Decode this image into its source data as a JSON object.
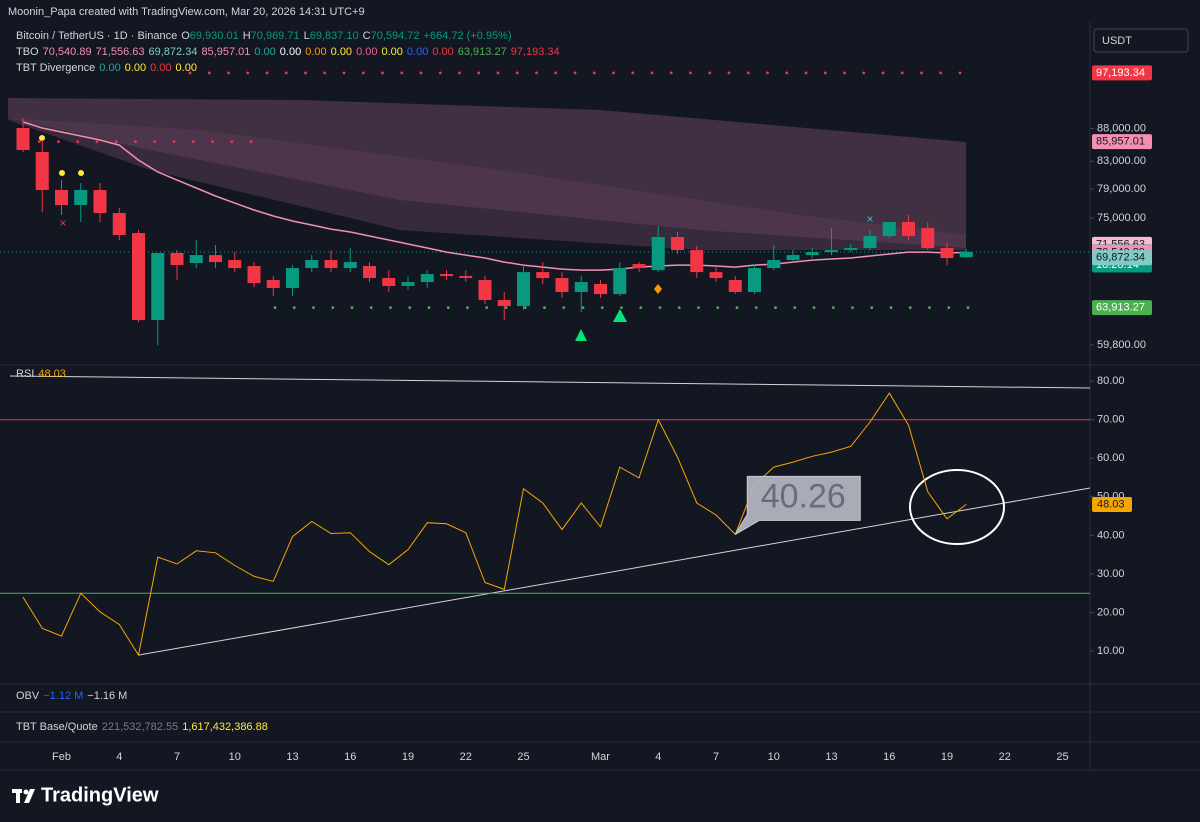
{
  "header": {
    "attribution": "Moonin_Papa created with TradingView.com, Mar 20, 2026 14:31 UTC+9",
    "symbol": "Bitcoin / TetherUS · 1D · Binance",
    "ohlc": [
      {
        "prefix": "O",
        "text": "69,930.01"
      },
      {
        "prefix": "H",
        "text": "70,969.71"
      },
      {
        "prefix": "L",
        "text": "69,837.10"
      },
      {
        "prefix": "C",
        "text": "70,594.72"
      }
    ],
    "change": "+664.72 (+0.95%)",
    "indicators": [
      {
        "name": "TBO",
        "values": [
          {
            "text": "70,540.89",
            "color": "#f48fb1"
          },
          {
            "text": "71,556.63",
            "color": "#f48fb1"
          },
          {
            "text": "69,872.34",
            "color": "#80cbc4"
          },
          {
            "text": "85,957.01",
            "color": "#f48fb1"
          },
          {
            "text": "0.00",
            "color": "#26a69a"
          },
          {
            "text": "0.00",
            "color": "#ffffff"
          },
          {
            "text": "0.00",
            "color": "#ff9800"
          },
          {
            "text": "0.00",
            "color": "#ffeb3b"
          },
          {
            "text": "0.00",
            "color": "#f06292"
          },
          {
            "text": "0.00",
            "color": "#ffeb3b"
          },
          {
            "text": "0.00",
            "color": "#2962ff"
          },
          {
            "text": "0.00",
            "color": "#f23645"
          },
          {
            "text": "63,913.27",
            "color": "#4caf50"
          },
          {
            "text": "97,193.34",
            "color": "#f23645"
          }
        ]
      },
      {
        "name": "TBT Divergence",
        "values": [
          {
            "text": "0.00",
            "color": "#26a69a"
          },
          {
            "text": "0.00",
            "color": "#ffeb3b"
          },
          {
            "text": "0.00",
            "color": "#f23645"
          },
          {
            "text": "0.00",
            "color": "#ffeb3b"
          }
        ]
      }
    ],
    "currency": "USDT",
    "obv": {
      "name": "OBV",
      "values": [
        {
          "text": "−1.12 M",
          "color": "#2962ff"
        },
        {
          "text": "−1.16 M",
          "color": "#d1d4dc"
        }
      ]
    },
    "tbt": {
      "name": "TBT Base/Quote",
      "values": [
        {
          "text": "221,532,782.55",
          "color": "#787b86"
        },
        {
          "text": "1,617,432,386.88",
          "color": "#ffeb3b"
        }
      ]
    },
    "footer": "TradingView"
  },
  "chart_data": [
    {
      "type": "candlestick",
      "log": true,
      "up_color": "#089981",
      "down_color": "#f23645",
      "categories": [
        null,
        null,
        "Feb",
        null,
        null,
        "4",
        null,
        null,
        "7",
        null,
        null,
        "10",
        null,
        null,
        "13",
        null,
        null,
        "16",
        null,
        null,
        "19",
        null,
        null,
        "22",
        null,
        null,
        "25",
        null,
        null,
        null,
        "Mar",
        null,
        null,
        "4",
        null,
        null,
        "7",
        null,
        null,
        "10",
        null,
        null,
        "13",
        null,
        null,
        "16",
        null,
        null,
        "19",
        null,
        null,
        "22",
        null,
        null,
        "25",
        null
      ],
      "open": [
        88080,
        84380,
        78850,
        76760,
        78850,
        75670,
        73020,
        62510,
        70460,
        69210,
        70200,
        69580,
        68840,
        67140,
        66190,
        68590,
        69580,
        68590,
        68840,
        67380,
        66430,
        66900,
        67860,
        67620,
        67140,
        64790,
        64090,
        68100,
        67380,
        65720,
        66660,
        65480,
        69080,
        68340,
        72500,
        70830,
        68100,
        67140,
        65720,
        68590,
        69580,
        70200,
        70580,
        70830,
        71090,
        72630,
        74470,
        73670,
        71090,
        69930.01,
        null,
        null,
        null,
        null,
        null,
        null
      ],
      "high": [
        89660,
        86210,
        80260,
        79840,
        79840,
        76350,
        73410,
        70460,
        70830,
        72110,
        71470,
        70580,
        69330,
        67620,
        68960,
        70200,
        70830,
        71090,
        69330,
        68340,
        67620,
        68340,
        68340,
        68340,
        67620,
        65720,
        68960,
        69330,
        68100,
        67620,
        67140,
        69330,
        69330,
        73940,
        73150,
        71340,
        68840,
        67620,
        69080,
        71470,
        70830,
        71090,
        73670,
        71600,
        73410,
        74470,
        75400,
        74470,
        71850,
        70969.71,
        null,
        null,
        null,
        null,
        null,
        null
      ],
      "low": [
        84380,
        75810,
        75400,
        74470,
        74470,
        72110,
        62290,
        59780,
        67140,
        68590,
        68590,
        68100,
        66310,
        65250,
        65250,
        68100,
        68100,
        68100,
        66900,
        65720,
        65950,
        66190,
        67140,
        66900,
        64320,
        62510,
        63640,
        66660,
        65020,
        63410,
        65020,
        65250,
        68100,
        68100,
        70330,
        67380,
        66900,
        65480,
        65480,
        68340,
        69330,
        69830,
        70200,
        70580,
        70830,
        72370,
        72110,
        70830,
        68960,
        69837.1,
        null,
        null,
        null,
        null,
        null,
        null
      ],
      "close": [
        84690,
        78850,
        76760,
        78850,
        75670,
        72760,
        62510,
        70460,
        68960,
        70200,
        69330,
        68590,
        66780,
        66190,
        68590,
        69580,
        68590,
        69330,
        67380,
        66430,
        66900,
        67860,
        67620,
        67380,
        64790,
        64090,
        68100,
        67380,
        65720,
        66900,
        65480,
        68590,
        68590,
        72500,
        70830,
        68100,
        67380,
        65720,
        68590,
        69580,
        70200,
        70580,
        70830,
        71090,
        72630,
        74470,
        72630,
        71090,
        69830,
        70594.72,
        null,
        null,
        null,
        null,
        null,
        null
      ],
      "ma": {
        "color": "#f48fb1",
        "values": [
          89030,
          88080,
          87450,
          86830,
          86210,
          85440,
          83180,
          81420,
          80260,
          79130,
          78010,
          77030,
          76080,
          75270,
          74600,
          74070,
          73540,
          73150,
          72630,
          72110,
          71600,
          71090,
          70580,
          70200,
          69830,
          69330,
          68960,
          68710,
          68470,
          68340,
          68340,
          68470,
          68710,
          68840,
          68960,
          68960,
          68840,
          68710,
          68960,
          69080,
          69330,
          69580,
          69710,
          69830,
          70080,
          70330,
          70580,
          70580,
          70460,
          70540.89,
          null,
          null,
          null,
          null,
          null,
          null
        ]
      },
      "ylim": [
        58000,
        105300
      ],
      "yticks": [
        {
          "value": 88000,
          "label": "88,000.00"
        },
        {
          "value": 83000,
          "label": "83,000.00"
        },
        {
          "value": 79000,
          "label": "79,000.00"
        },
        {
          "value": 75000,
          "label": "75,000.00"
        },
        {
          "value": 59800,
          "label": "59,800.00"
        }
      ],
      "price_labels": [
        {
          "value": 97193.34,
          "label": "97,193.34",
          "color": "#f23645",
          "text_color": "#ffffff"
        },
        {
          "value": 85957.01,
          "label": "85,957.01",
          "color": "#f48fb1",
          "text_color": "#131722"
        },
        {
          "value": 71556.63,
          "label": "71,556.63",
          "color": "#f8bbd0",
          "text_color": "#131722"
        },
        {
          "value": 70594.72,
          "label": "70,594.72",
          "sublabel": "18:28:14",
          "color": "#089981",
          "text_color": "#ffffff"
        },
        {
          "value": 70540.89,
          "label": "70,540.89",
          "color": "#f48fb1",
          "text_color": "#131722"
        },
        {
          "value": 69872.34,
          "label": "69,872.34",
          "color": "#80cbc4",
          "text_color": "#131722"
        },
        {
          "value": 63913.27,
          "label": "63,913.27",
          "color": "#4caf50",
          "text_color": "#ffffff"
        }
      ]
    },
    {
      "type": "line",
      "name": "RSI",
      "color": "#f7a600",
      "values": [
        24,
        15.9,
        13.9,
        25,
        20.2,
        16.9,
        9.0,
        34.4,
        32.6,
        36,
        35.5,
        32.2,
        29.4,
        28.1,
        39.7,
        43.6,
        40.5,
        40.7,
        35.8,
        32.4,
        36.3,
        43.3,
        43,
        40.7,
        27.8,
        26,
        52.1,
        48.4,
        41.5,
        48.4,
        42.2,
        57.7,
        54.9,
        70,
        60.3,
        48.4,
        45.3,
        40.26,
        53.1,
        57.7,
        59,
        60.5,
        61.6,
        63.1,
        69.4,
        76.9,
        68.6,
        51.3,
        44.3,
        48.03,
        null,
        null,
        null,
        null,
        null,
        null
      ],
      "value_labels": {
        "37": "40.26",
        "49": "48.03"
      },
      "hlines": [
        {
          "value": 70,
          "color": "#f23645"
        },
        {
          "value": 25,
          "color": "#4caf50"
        }
      ],
      "ylim": [
        2,
        83.4
      ],
      "yticks": [
        {
          "value": 80,
          "label": "80.00"
        },
        {
          "value": 70,
          "label": "70.00"
        },
        {
          "value": 60,
          "label": "60.00"
        },
        {
          "value": 50,
          "label": "50.00"
        },
        {
          "value": 40,
          "label": "40.00"
        },
        {
          "value": 30,
          "label": "30.00"
        },
        {
          "value": 20,
          "label": "20.00"
        },
        {
          "value": 10,
          "label": "10.00"
        }
      ]
    }
  ]
}
